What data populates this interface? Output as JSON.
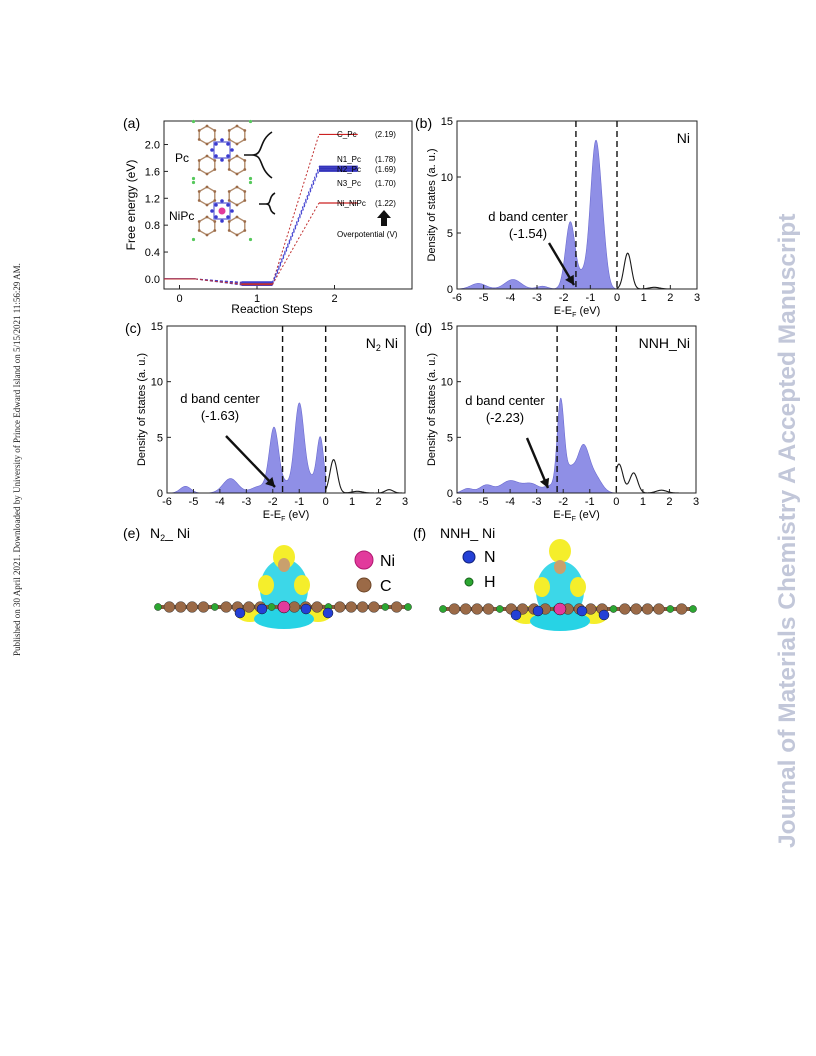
{
  "side_note": "Published on 30 April 2021. Downloaded by University of Prince Edward Island on 5/15/2021 11:56:29 AM.",
  "watermark": "Journal of Materials Chemistry A Accepted Manuscript",
  "colors": {
    "dos_fill": "#8f8fe6",
    "dos_line": "#1a1a1a",
    "pc_path": "#3f3fcf",
    "nipc_path": "#c03030",
    "level_red": "#cc2222",
    "level_blue": "#3333bb",
    "cyan_isosurface": "#27d3e5",
    "yellow_isosurface": "#f5ee2b",
    "ni_atom": "#e23a9c",
    "c_atom": "#9b6a47",
    "n_atom": "#2440d6",
    "h_atom": "#2ca631"
  },
  "panel_a": {
    "label": "(a)",
    "ylabel": "Free energy (eV)",
    "xlabel": "Reaction Steps",
    "molecule_pc": "Pc",
    "molecule_nipc": "NiPc",
    "levels": [
      {
        "name": "C_Pc",
        "value_text": "(2.19)",
        "energy": 2.19
      },
      {
        "name": "N1_Pc",
        "value_text": "(1.78)",
        "energy": 1.67
      },
      {
        "name": "N2_Pc",
        "value_text": "(1.69)",
        "energy": 1.64
      },
      {
        "name": "N3_Pc",
        "value_text": "(1.70)",
        "energy": 1.61
      },
      {
        "name": "Ni_NiPc",
        "value_text": "(1.22)",
        "energy": 1.13
      }
    ],
    "overpotential_label": "Overpotential (V)",
    "chart_data": {
      "type": "line",
      "xlabel": "Reaction Steps",
      "ylabel": "Free energy (eV)",
      "xlim": [
        -0.2,
        3.0
      ],
      "ylim": [
        -0.15,
        2.35
      ],
      "xticks": [
        "0",
        "1",
        "2"
      ],
      "yticks": [
        "0.0",
        "0.4",
        "0.8",
        "1.2",
        "1.6",
        "2.0"
      ],
      "series": [
        {
          "name": "C_Pc",
          "points": [
            [
              -0.2,
              0.0
            ],
            [
              0.2,
              0.0
            ],
            [
              0.8,
              -0.06
            ],
            [
              1.2,
              -0.06
            ],
            [
              1.8,
              2.15
            ],
            [
              2.3,
              2.15
            ]
          ]
        },
        {
          "name": "N1_Pc",
          "points": [
            [
              -0.2,
              0.0
            ],
            [
              0.2,
              0.0
            ],
            [
              0.8,
              -0.05
            ],
            [
              1.2,
              -0.05
            ],
            [
              1.8,
              1.67
            ],
            [
              2.3,
              1.67
            ]
          ]
        },
        {
          "name": "N2_Pc",
          "points": [
            [
              -0.2,
              0.0
            ],
            [
              0.2,
              0.0
            ],
            [
              0.8,
              -0.07
            ],
            [
              1.2,
              -0.07
            ],
            [
              1.8,
              1.64
            ],
            [
              2.3,
              1.64
            ]
          ]
        },
        {
          "name": "N3_Pc",
          "points": [
            [
              -0.2,
              0.0
            ],
            [
              0.2,
              0.0
            ],
            [
              0.8,
              -0.09
            ],
            [
              1.2,
              -0.09
            ],
            [
              1.8,
              1.61
            ],
            [
              2.3,
              1.61
            ]
          ]
        },
        {
          "name": "Ni_NiPc",
          "points": [
            [
              -0.2,
              0.0
            ],
            [
              0.2,
              0.0
            ],
            [
              0.8,
              -0.08
            ],
            [
              1.2,
              -0.08
            ],
            [
              1.8,
              1.13
            ],
            [
              2.3,
              1.13
            ]
          ]
        }
      ]
    }
  },
  "dos_panels": [
    {
      "label": "(b)",
      "title": "Ni",
      "title_sub": "",
      "ylabel": "Density of states (a. u.)",
      "xlabel_main": "E-E",
      "xlabel_sub": "F",
      "xlabel_unit": " (eV)",
      "annotation_line1": "d band center",
      "annotation_line2": "(-1.54)",
      "chart_data": {
        "type": "area",
        "xlim": [
          -6,
          3
        ],
        "ylim": [
          0,
          15
        ],
        "xticks": [
          "-6",
          "-5",
          "-4",
          "-3",
          "-2",
          "-1",
          "0",
          "1",
          "2",
          "3"
        ],
        "yticks": [
          "0",
          "5",
          "10",
          "15"
        ],
        "d_band_center": -1.54,
        "fermi_level": 0,
        "filled_peaks": [
          [
            -5.2,
            0.5,
            0.28
          ],
          [
            -3.9,
            0.85,
            0.3
          ],
          [
            -2.8,
            0.25,
            0.2
          ],
          [
            -1.75,
            6.0,
            0.18
          ],
          [
            -1.3,
            1.0,
            0.15
          ],
          [
            -0.8,
            13.0,
            0.2
          ],
          [
            -0.5,
            2.0,
            0.15
          ]
        ],
        "empty_peaks": [
          [
            0.4,
            3.2,
            0.14
          ],
          [
            1.4,
            0.15,
            0.2
          ]
        ]
      }
    },
    {
      "label": "(c)",
      "title": "N",
      "title_sub": "2",
      "title_tail": " Ni",
      "ylabel": "Density of states (a. u.)",
      "xlabel_main": "E-E",
      "xlabel_sub": "F",
      "xlabel_unit": " (eV)",
      "annotation_line1": "d band center",
      "annotation_line2": "(-1.63)",
      "chart_data": {
        "type": "area",
        "xlim": [
          -6,
          3
        ],
        "ylim": [
          0,
          15
        ],
        "xticks": [
          "-6",
          "-5",
          "-4",
          "-3",
          "-2",
          "-1",
          "0",
          "1",
          "2",
          "3"
        ],
        "yticks": [
          "0",
          "5",
          "10",
          "15"
        ],
        "d_band_center": -1.63,
        "fermi_level": 0,
        "filled_peaks": [
          [
            -5.3,
            0.6,
            0.2
          ],
          [
            -3.6,
            1.3,
            0.28
          ],
          [
            -2.5,
            0.6,
            0.3
          ],
          [
            -1.95,
            5.8,
            0.18
          ],
          [
            -1.5,
            0.7,
            0.15
          ],
          [
            -1.0,
            8.0,
            0.18
          ],
          [
            -0.55,
            1.2,
            0.2
          ],
          [
            -0.2,
            4.8,
            0.13
          ]
        ],
        "empty_peaks": [
          [
            0.3,
            3.0,
            0.14
          ],
          [
            1.2,
            0.15,
            0.2
          ],
          [
            2.4,
            0.3,
            0.15
          ]
        ]
      }
    },
    {
      "label": "(d)",
      "title": "NNH_Ni",
      "title_sub": "",
      "ylabel": "Density of states (a. u.)",
      "xlabel_main": "E-E",
      "xlabel_sub": "F",
      "xlabel_unit": " (eV)",
      "annotation_line1": "d band center",
      "annotation_line2": "(-2.23)",
      "chart_data": {
        "type": "area",
        "xlim": [
          -6,
          3
        ],
        "ylim": [
          0,
          15
        ],
        "xticks": [
          "-6",
          "-5",
          "-4",
          "-3",
          "-2",
          "-1",
          "0",
          "1",
          "2",
          "3"
        ],
        "yticks": [
          "0",
          "5",
          "10",
          "15"
        ],
        "d_band_center": -2.23,
        "fermi_level": 0,
        "filled_peaks": [
          [
            -5.6,
            0.4,
            0.2
          ],
          [
            -4.9,
            0.7,
            0.25
          ],
          [
            -4.0,
            1.1,
            0.35
          ],
          [
            -3.2,
            0.8,
            0.3
          ],
          [
            -2.5,
            0.6,
            0.2
          ],
          [
            -2.1,
            8.0,
            0.13
          ],
          [
            -1.75,
            2.0,
            0.2
          ],
          [
            -1.25,
            4.0,
            0.22
          ],
          [
            -0.8,
            1.4,
            0.25
          ]
        ],
        "empty_peaks": [
          [
            0.1,
            2.6,
            0.15
          ],
          [
            0.65,
            1.8,
            0.15
          ],
          [
            1.7,
            0.25,
            0.2
          ]
        ]
      }
    }
  ],
  "panel_e": {
    "label": "(e)",
    "title_main": "N",
    "title_sub": "2",
    "title_tail": "_ Ni",
    "legend": [
      {
        "symbol": "Ni",
        "color": "#e23a9c"
      },
      {
        "symbol": "C",
        "color": "#9b6a47"
      }
    ]
  },
  "panel_f": {
    "label": "(f)",
    "title": "NNH_ Ni",
    "legend": [
      {
        "symbol": "N",
        "color": "#2440d6"
      },
      {
        "symbol": "H",
        "color": "#2ca631"
      }
    ]
  }
}
